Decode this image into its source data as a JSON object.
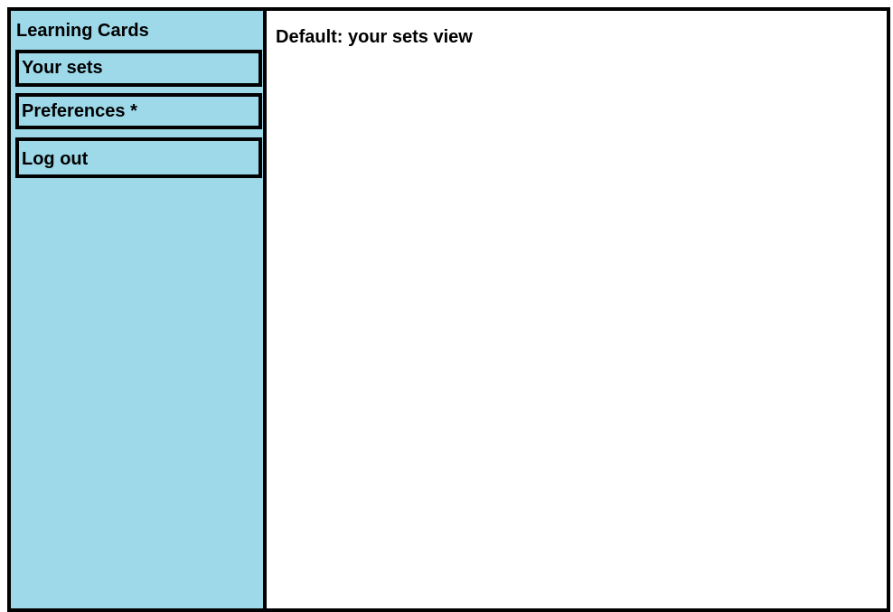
{
  "sidebar": {
    "title": "Learning Cards",
    "items": [
      {
        "label": "Your sets"
      },
      {
        "label": "Preferences *"
      },
      {
        "label": "Log out"
      }
    ]
  },
  "main": {
    "heading": "Default: your sets view"
  },
  "colors": {
    "sidebar_background": "#9dd9e9",
    "border": "#000000",
    "content_background": "#ffffff"
  }
}
